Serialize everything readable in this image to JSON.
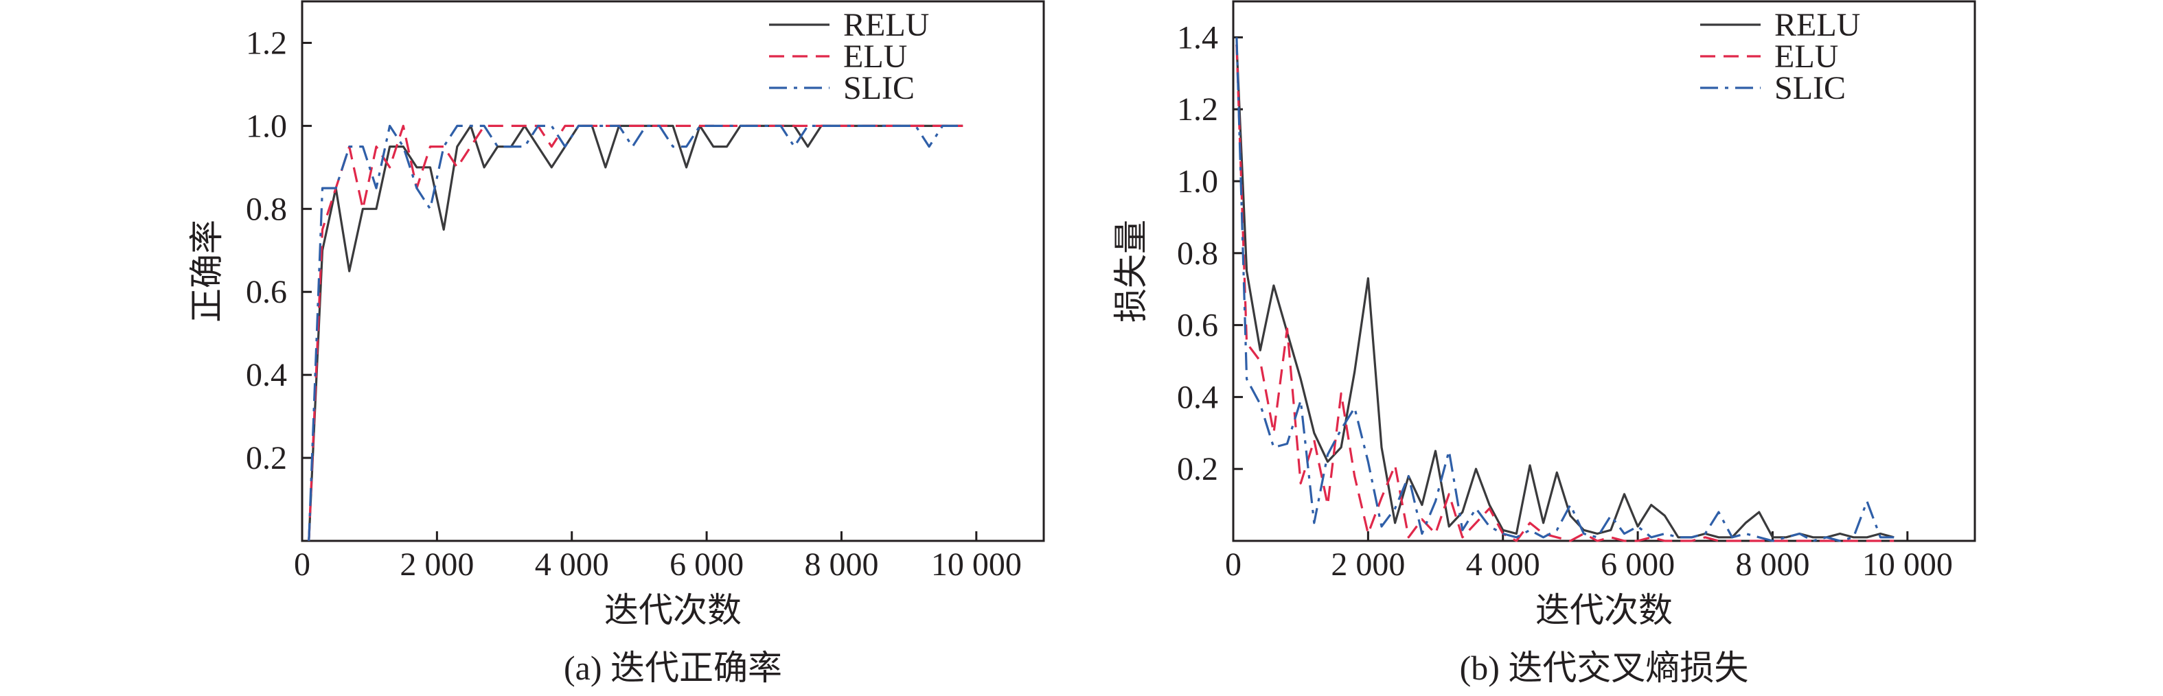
{
  "colors": {
    "axis": "#231f20",
    "relu": "#3a3a3c",
    "elu": "#e0284a",
    "slic": "#2f5fa8"
  },
  "chart_data": [
    {
      "type": "line",
      "caption": "(a) 迭代正确率",
      "xlabel": "迭代次数",
      "ylabel": "正确率",
      "xlim": [
        0,
        11000
      ],
      "ylim": [
        0,
        1.3
      ],
      "xticks": [
        0,
        2000,
        4000,
        6000,
        8000,
        10000
      ],
      "xtick_labels": [
        "0",
        "2 000",
        "4 000",
        "6 000",
        "8 000",
        "10 000"
      ],
      "yticks": [
        0.2,
        0.4,
        0.6,
        0.8,
        1.0,
        1.2
      ],
      "ytick_labels": [
        "0.2",
        "0.4",
        "0.6",
        "0.8",
        "1.0",
        "1.2"
      ],
      "legend_position": "top-right",
      "series": [
        {
          "name": "RELU",
          "style": "solid",
          "color_key": "relu",
          "x": [
            100,
            300,
            500,
            700,
            900,
            1100,
            1300,
            1500,
            1700,
            1900,
            2100,
            2300,
            2500,
            2700,
            2900,
            3100,
            3300,
            3500,
            3700,
            3900,
            4100,
            4300,
            4500,
            4700,
            4900,
            5100,
            5300,
            5500,
            5700,
            5900,
            6100,
            6300,
            6500,
            6700,
            6900,
            7100,
            7300,
            7500,
            7700,
            7900,
            8100,
            8300,
            8500,
            8700,
            8900,
            9100,
            9300,
            9500,
            9700,
            9800
          ],
          "y": [
            0.0,
            0.7,
            0.85,
            0.65,
            0.8,
            0.8,
            0.95,
            0.95,
            0.9,
            0.9,
            0.75,
            0.95,
            1.0,
            0.9,
            0.95,
            0.95,
            1.0,
            0.95,
            0.9,
            0.95,
            1.0,
            1.0,
            0.9,
            1.0,
            1.0,
            1.0,
            1.0,
            1.0,
            0.9,
            1.0,
            0.95,
            0.95,
            1.0,
            1.0,
            1.0,
            1.0,
            1.0,
            0.95,
            1.0,
            1.0,
            1.0,
            1.0,
            1.0,
            1.0,
            1.0,
            1.0,
            1.0,
            1.0,
            1.0,
            1.0
          ]
        },
        {
          "name": "ELU",
          "style": "dashed",
          "color_key": "elu",
          "x": [
            100,
            300,
            500,
            700,
            900,
            1100,
            1300,
            1500,
            1700,
            1900,
            2100,
            2300,
            2500,
            2700,
            2900,
            3100,
            3300,
            3500,
            3700,
            3900,
            4100,
            4300,
            4500,
            4700,
            4900,
            5100,
            5300,
            5500,
            5700,
            5900,
            6100,
            6300,
            6500,
            6700,
            6900,
            7100,
            7300,
            7500,
            7700,
            7900,
            8100,
            8300,
            8500,
            8700,
            8900,
            9100,
            9300,
            9500,
            9700,
            9800
          ],
          "y": [
            0.0,
            0.75,
            0.85,
            0.95,
            0.8,
            0.95,
            0.9,
            1.0,
            0.85,
            0.95,
            0.95,
            0.9,
            0.95,
            1.0,
            1.0,
            1.0,
            1.0,
            1.0,
            0.95,
            1.0,
            1.0,
            1.0,
            1.0,
            1.0,
            1.0,
            1.0,
            1.0,
            1.0,
            1.0,
            1.0,
            1.0,
            1.0,
            1.0,
            1.0,
            1.0,
            1.0,
            1.0,
            1.0,
            1.0,
            1.0,
            1.0,
            1.0,
            1.0,
            1.0,
            1.0,
            1.0,
            1.0,
            1.0,
            1.0,
            1.0
          ]
        },
        {
          "name": "SLIC",
          "style": "dashdot",
          "color_key": "slic",
          "x": [
            100,
            300,
            500,
            700,
            900,
            1100,
            1300,
            1500,
            1700,
            1900,
            2100,
            2300,
            2500,
            2700,
            2900,
            3100,
            3300,
            3500,
            3700,
            3900,
            4100,
            4300,
            4500,
            4700,
            4900,
            5100,
            5300,
            5500,
            5700,
            5900,
            6100,
            6300,
            6500,
            6700,
            6900,
            7100,
            7300,
            7500,
            7700,
            7900,
            8100,
            8300,
            8500,
            8700,
            8900,
            9100,
            9300,
            9500,
            9700,
            9800
          ],
          "y": [
            0.0,
            0.85,
            0.85,
            0.95,
            0.95,
            0.85,
            1.0,
            0.95,
            0.85,
            0.8,
            0.95,
            1.0,
            1.0,
            1.0,
            0.95,
            0.95,
            0.95,
            1.0,
            1.0,
            0.95,
            1.0,
            1.0,
            1.0,
            1.0,
            0.95,
            1.0,
            1.0,
            0.95,
            0.95,
            1.0,
            1.0,
            1.0,
            1.0,
            1.0,
            1.0,
            1.0,
            0.95,
            1.0,
            1.0,
            1.0,
            1.0,
            1.0,
            1.0,
            1.0,
            1.0,
            1.0,
            0.95,
            1.0,
            1.0,
            1.0
          ]
        }
      ]
    },
    {
      "type": "line",
      "caption": "(b) 迭代交叉熵损失",
      "xlabel": "迭代次数",
      "ylabel": "损失量",
      "xlim": [
        0,
        11000
      ],
      "ylim": [
        0,
        1.5
      ],
      "xticks": [
        0,
        2000,
        4000,
        6000,
        8000,
        10000
      ],
      "xtick_labels": [
        "0",
        "2 000",
        "4 000",
        "6 000",
        "8 000",
        "10 000"
      ],
      "yticks": [
        0.2,
        0.4,
        0.6,
        0.8,
        1.0,
        1.2,
        1.4
      ],
      "ytick_labels": [
        "0.2",
        "0.4",
        "0.6",
        "0.8",
        "1.0",
        "1.2",
        "1.4"
      ],
      "legend_position": "top-right",
      "series": [
        {
          "name": "RELU",
          "style": "solid",
          "color_key": "relu",
          "x": [
            50,
            200,
            400,
            600,
            800,
            1000,
            1200,
            1400,
            1600,
            1800,
            2000,
            2200,
            2400,
            2600,
            2800,
            3000,
            3200,
            3400,
            3600,
            3800,
            4000,
            4200,
            4400,
            4600,
            4800,
            5000,
            5200,
            5400,
            5600,
            5800,
            6000,
            6200,
            6400,
            6600,
            6800,
            7000,
            7200,
            7400,
            7600,
            7800,
            8000,
            8200,
            8400,
            8600,
            8800,
            9000,
            9200,
            9400,
            9600,
            9800
          ],
          "y": [
            1.38,
            0.75,
            0.53,
            0.71,
            0.58,
            0.45,
            0.3,
            0.22,
            0.26,
            0.47,
            0.73,
            0.26,
            0.05,
            0.18,
            0.1,
            0.25,
            0.04,
            0.08,
            0.2,
            0.1,
            0.03,
            0.02,
            0.21,
            0.05,
            0.19,
            0.07,
            0.03,
            0.02,
            0.03,
            0.13,
            0.04,
            0.1,
            0.07,
            0.01,
            0.01,
            0.02,
            0.01,
            0.01,
            0.05,
            0.08,
            0.01,
            0.01,
            0.02,
            0.01,
            0.01,
            0.02,
            0.01,
            0.01,
            0.02,
            0.01
          ]
        },
        {
          "name": "ELU",
          "style": "dashed",
          "color_key": "elu",
          "x": [
            50,
            200,
            400,
            600,
            800,
            1000,
            1200,
            1400,
            1600,
            1800,
            2000,
            2200,
            2400,
            2600,
            2800,
            3000,
            3200,
            3400,
            3600,
            3800,
            4000,
            4200,
            4400,
            4600,
            4800,
            5000,
            5200,
            5400,
            5600,
            5800,
            6000,
            6200,
            6400,
            6600,
            6800,
            7000,
            7200,
            7400,
            7600,
            7800,
            8000,
            8200,
            8400,
            8600,
            8800,
            9000,
            9200,
            9400,
            9600,
            9800
          ],
          "y": [
            1.38,
            0.55,
            0.5,
            0.3,
            0.59,
            0.16,
            0.28,
            0.1,
            0.41,
            0.18,
            0.02,
            0.12,
            0.21,
            0.01,
            0.06,
            0.02,
            0.13,
            0.01,
            0.05,
            0.09,
            0.02,
            0.0,
            0.05,
            0.02,
            0.01,
            0.0,
            0.02,
            0.0,
            0.01,
            0.0,
            0.0,
            0.01,
            0.0,
            0.0,
            0.0,
            0.01,
            0.0,
            0.0,
            0.0,
            0.0,
            0.0,
            0.0,
            0.0,
            0.0,
            0.0,
            0.0,
            0.0,
            0.0,
            0.0,
            0.0
          ]
        },
        {
          "name": "SLIC",
          "style": "dashdot",
          "color_key": "slic",
          "x": [
            50,
            200,
            400,
            600,
            800,
            1000,
            1200,
            1400,
            1600,
            1800,
            2000,
            2200,
            2400,
            2600,
            2800,
            3000,
            3200,
            3400,
            3600,
            3800,
            4000,
            4200,
            4400,
            4600,
            4800,
            5000,
            5200,
            5400,
            5600,
            5800,
            6000,
            6200,
            6400,
            6600,
            6800,
            7000,
            7200,
            7400,
            7600,
            7800,
            8000,
            8200,
            8400,
            8600,
            8800,
            9000,
            9200,
            9400,
            9600,
            9800
          ],
          "y": [
            1.4,
            0.45,
            0.38,
            0.26,
            0.27,
            0.39,
            0.05,
            0.24,
            0.31,
            0.37,
            0.22,
            0.04,
            0.09,
            0.18,
            0.02,
            0.11,
            0.25,
            0.03,
            0.09,
            0.04,
            0.02,
            0.01,
            0.03,
            0.01,
            0.03,
            0.1,
            0.02,
            0.01,
            0.07,
            0.02,
            0.04,
            0.01,
            0.02,
            0.01,
            0.01,
            0.02,
            0.08,
            0.01,
            0.02,
            0.01,
            0.0,
            0.01,
            0.02,
            0.0,
            0.01,
            0.0,
            0.01,
            0.11,
            0.01,
            0.01
          ]
        }
      ]
    }
  ]
}
